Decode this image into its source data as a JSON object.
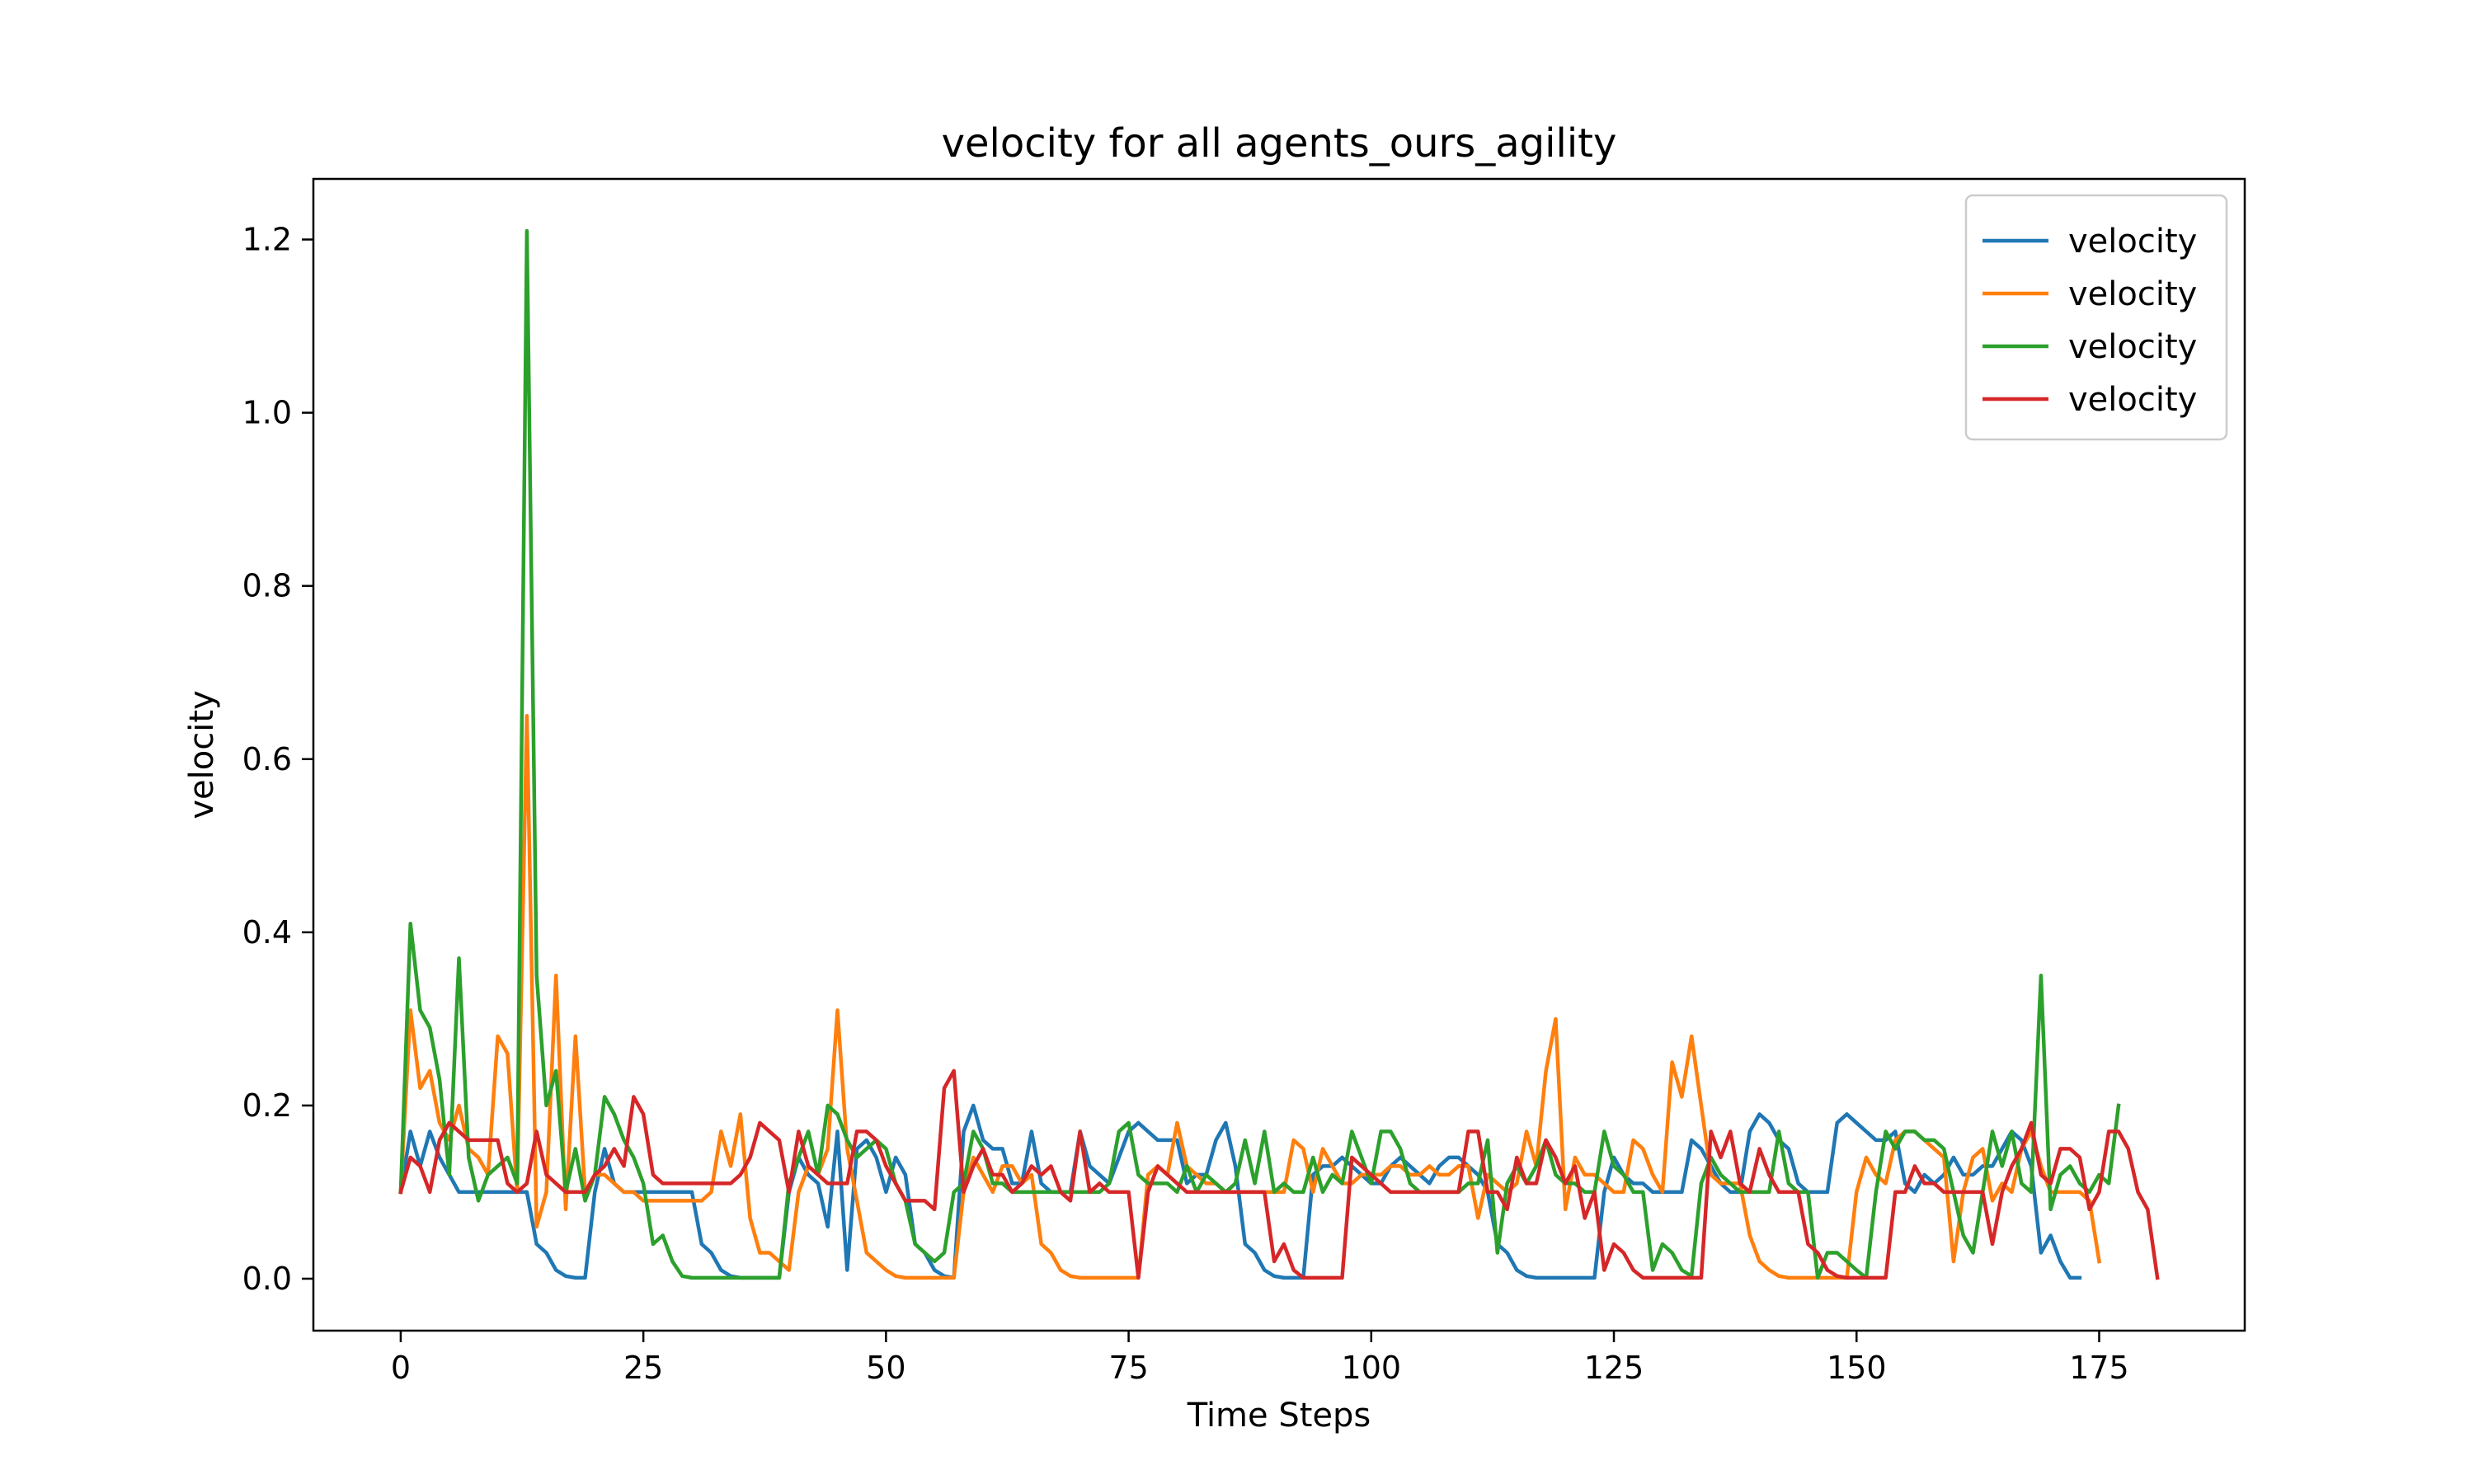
{
  "chart_data": {
    "type": "line",
    "title": "velocity for all agents_ours_agility",
    "xlabel": "Time Steps",
    "ylabel": "velocity",
    "xlim": [
      -9,
      190
    ],
    "ylim": [
      -0.06,
      1.27
    ],
    "xticks": [
      0,
      25,
      50,
      75,
      100,
      125,
      150,
      175
    ],
    "yticks": [
      0.0,
      0.2,
      0.4,
      0.6,
      0.8,
      1.0,
      1.2
    ],
    "ytick_labels": [
      "0.0",
      "0.2",
      "0.4",
      "0.6",
      "0.8",
      "1.0",
      "1.2"
    ],
    "grid": false,
    "legend_position": "top-right",
    "series": [
      {
        "name": "velocity",
        "color": "#1f77b4",
        "values": [
          0.1,
          0.17,
          0.13,
          0.17,
          0.14,
          0.12,
          0.1,
          0.1,
          0.1,
          0.1,
          0.1,
          0.1,
          0.1,
          0.1,
          0.04,
          0.03,
          0.01,
          0.003,
          0.001,
          0.001,
          0.1,
          0.15,
          0.11,
          0.1,
          0.1,
          0.1,
          0.1,
          0.1,
          0.1,
          0.1,
          0.1,
          0.04,
          0.03,
          0.01,
          0.003,
          0.001,
          0.001,
          0.001,
          0.001,
          0.001,
          0.1,
          0.14,
          0.12,
          0.11,
          0.06,
          0.17,
          0.01,
          0.15,
          0.16,
          0.14,
          0.1,
          0.14,
          0.12,
          0.04,
          0.03,
          0.01,
          0.003,
          0.001,
          0.17,
          0.2,
          0.16,
          0.15,
          0.15,
          0.11,
          0.11,
          0.17,
          0.11,
          0.1,
          0.1,
          0.1,
          0.17,
          0.13,
          0.12,
          0.11,
          0.14,
          0.17,
          0.18,
          0.17,
          0.16,
          0.16,
          0.16,
          0.11,
          0.12,
          0.12,
          0.16,
          0.18,
          0.13,
          0.04,
          0.03,
          0.01,
          0.003,
          0.001,
          0.001,
          0.001,
          0.12,
          0.13,
          0.13,
          0.14,
          0.13,
          0.12,
          0.11,
          0.11,
          0.13,
          0.14,
          0.13,
          0.12,
          0.11,
          0.13,
          0.14,
          0.14,
          0.13,
          0.12,
          0.1,
          0.04,
          0.03,
          0.01,
          0.003,
          0.001,
          0.001,
          0.001,
          0.001,
          0.001,
          0.001,
          0.001,
          0.1,
          0.14,
          0.12,
          0.11,
          0.11,
          0.1,
          0.1,
          0.1,
          0.1,
          0.16,
          0.15,
          0.13,
          0.11,
          0.1,
          0.1,
          0.17,
          0.19,
          0.18,
          0.16,
          0.15,
          0.11,
          0.1,
          0.1,
          0.1,
          0.18,
          0.19,
          0.18,
          0.17,
          0.16,
          0.16,
          0.17,
          0.11,
          0.1,
          0.12,
          0.11,
          0.12,
          0.14,
          0.12,
          0.12,
          0.13,
          0.13,
          0.15,
          0.17,
          0.16,
          0.13,
          0.03,
          0.05,
          0.02,
          0.001,
          0.001
        ]
      },
      {
        "name": "velocity",
        "color": "#ff7f0e",
        "values": [
          0.1,
          0.31,
          0.22,
          0.24,
          0.18,
          0.16,
          0.2,
          0.15,
          0.14,
          0.12,
          0.28,
          0.26,
          0.1,
          0.65,
          0.06,
          0.1,
          0.35,
          0.08,
          0.28,
          0.1,
          0.12,
          0.12,
          0.11,
          0.1,
          0.1,
          0.09,
          0.09,
          0.09,
          0.09,
          0.09,
          0.09,
          0.09,
          0.1,
          0.17,
          0.13,
          0.19,
          0.07,
          0.03,
          0.03,
          0.02,
          0.01,
          0.1,
          0.13,
          0.12,
          0.15,
          0.31,
          0.15,
          0.09,
          0.03,
          0.02,
          0.01,
          0.003,
          0.001,
          0.001,
          0.001,
          0.001,
          0.001,
          0.001,
          0.1,
          0.14,
          0.12,
          0.1,
          0.13,
          0.13,
          0.11,
          0.12,
          0.04,
          0.03,
          0.01,
          0.003,
          0.001,
          0.001,
          0.001,
          0.001,
          0.001,
          0.001,
          0.001,
          0.12,
          0.13,
          0.12,
          0.18,
          0.13,
          0.12,
          0.11,
          0.11,
          0.1,
          0.1,
          0.1,
          0.1,
          0.1,
          0.1,
          0.1,
          0.16,
          0.15,
          0.1,
          0.15,
          0.13,
          0.11,
          0.11,
          0.12,
          0.12,
          0.12,
          0.13,
          0.13,
          0.12,
          0.12,
          0.13,
          0.12,
          0.12,
          0.13,
          0.13,
          0.07,
          0.12,
          0.11,
          0.1,
          0.11,
          0.17,
          0.13,
          0.24,
          0.3,
          0.08,
          0.14,
          0.12,
          0.12,
          0.11,
          0.1,
          0.1,
          0.16,
          0.15,
          0.12,
          0.1,
          0.25,
          0.21,
          0.28,
          0.2,
          0.12,
          0.11,
          0.11,
          0.11,
          0.05,
          0.02,
          0.01,
          0.003,
          0.001,
          0.001,
          0.001,
          0.001,
          0.001,
          0.001,
          0.001,
          0.1,
          0.14,
          0.12,
          0.11,
          0.16,
          0.17,
          0.17,
          0.16,
          0.15,
          0.14,
          0.02,
          0.1,
          0.14,
          0.15,
          0.09,
          0.11,
          0.1,
          0.15,
          0.17,
          0.13,
          0.1,
          0.1,
          0.1,
          0.1,
          0.09,
          0.02
        ]
      },
      {
        "name": "velocity",
        "color": "#2ca02c",
        "values": [
          0.1,
          0.41,
          0.31,
          0.29,
          0.23,
          0.12,
          0.37,
          0.14,
          0.09,
          0.12,
          0.13,
          0.14,
          0.11,
          1.21,
          0.35,
          0.2,
          0.24,
          0.1,
          0.15,
          0.09,
          0.12,
          0.21,
          0.19,
          0.16,
          0.14,
          0.11,
          0.04,
          0.05,
          0.02,
          0.003,
          0.001,
          0.001,
          0.001,
          0.001,
          0.001,
          0.001,
          0.001,
          0.001,
          0.001,
          0.001,
          0.11,
          0.14,
          0.17,
          0.12,
          0.2,
          0.19,
          0.16,
          0.14,
          0.15,
          0.16,
          0.15,
          0.11,
          0.09,
          0.04,
          0.03,
          0.02,
          0.03,
          0.1,
          0.11,
          0.17,
          0.15,
          0.11,
          0.11,
          0.1,
          0.1,
          0.1,
          0.1,
          0.1,
          0.1,
          0.1,
          0.1,
          0.1,
          0.1,
          0.11,
          0.17,
          0.18,
          0.12,
          0.11,
          0.11,
          0.11,
          0.1,
          0.13,
          0.1,
          0.12,
          0.11,
          0.1,
          0.11,
          0.16,
          0.11,
          0.17,
          0.1,
          0.11,
          0.1,
          0.1,
          0.14,
          0.1,
          0.12,
          0.11,
          0.17,
          0.14,
          0.11,
          0.17,
          0.17,
          0.15,
          0.11,
          0.1,
          0.1,
          0.1,
          0.1,
          0.1,
          0.11,
          0.11,
          0.16,
          0.03,
          0.11,
          0.13,
          0.11,
          0.13,
          0.16,
          0.12,
          0.11,
          0.11,
          0.1,
          0.1,
          0.17,
          0.13,
          0.12,
          0.1,
          0.1,
          0.01,
          0.04,
          0.03,
          0.01,
          0.003,
          0.11,
          0.14,
          0.12,
          0.11,
          0.1,
          0.1,
          0.1,
          0.1,
          0.17,
          0.11,
          0.1,
          0.1,
          0.001,
          0.03,
          0.03,
          0.02,
          0.01,
          0.001,
          0.1,
          0.17,
          0.15,
          0.17,
          0.17,
          0.16,
          0.16,
          0.15,
          0.1,
          0.05,
          0.03,
          0.1,
          0.17,
          0.13,
          0.17,
          0.11,
          0.1,
          0.35,
          0.08,
          0.12,
          0.13,
          0.11,
          0.1,
          0.12,
          0.11,
          0.2
        ]
      },
      {
        "name": "velocity",
        "color": "#d62728",
        "values": [
          0.1,
          0.14,
          0.13,
          0.1,
          0.16,
          0.18,
          0.17,
          0.16,
          0.16,
          0.16,
          0.16,
          0.11,
          0.1,
          0.11,
          0.17,
          0.12,
          0.11,
          0.1,
          0.1,
          0.1,
          0.12,
          0.13,
          0.15,
          0.13,
          0.21,
          0.19,
          0.12,
          0.11,
          0.11,
          0.11,
          0.11,
          0.11,
          0.11,
          0.11,
          0.11,
          0.12,
          0.14,
          0.18,
          0.17,
          0.16,
          0.1,
          0.17,
          0.13,
          0.12,
          0.11,
          0.11,
          0.11,
          0.17,
          0.17,
          0.16,
          0.13,
          0.11,
          0.09,
          0.09,
          0.09,
          0.08,
          0.22,
          0.24,
          0.1,
          0.13,
          0.15,
          0.12,
          0.12,
          0.1,
          0.11,
          0.13,
          0.12,
          0.13,
          0.1,
          0.09,
          0.17,
          0.1,
          0.11,
          0.1,
          0.1,
          0.1,
          0.001,
          0.1,
          0.13,
          0.12,
          0.11,
          0.1,
          0.1,
          0.1,
          0.1,
          0.1,
          0.1,
          0.1,
          0.1,
          0.1,
          0.02,
          0.04,
          0.01,
          0.001,
          0.001,
          0.001,
          0.001,
          0.001,
          0.14,
          0.13,
          0.12,
          0.11,
          0.1,
          0.1,
          0.1,
          0.1,
          0.1,
          0.1,
          0.1,
          0.1,
          0.17,
          0.17,
          0.1,
          0.1,
          0.08,
          0.14,
          0.11,
          0.11,
          0.16,
          0.14,
          0.11,
          0.13,
          0.07,
          0.1,
          0.01,
          0.04,
          0.03,
          0.01,
          0.001,
          0.001,
          0.001,
          0.001,
          0.001,
          0.001,
          0.001,
          0.17,
          0.14,
          0.17,
          0.11,
          0.1,
          0.15,
          0.12,
          0.1,
          0.1,
          0.1,
          0.04,
          0.03,
          0.01,
          0.003,
          0.001,
          0.001,
          0.001,
          0.001,
          0.001,
          0.1,
          0.1,
          0.13,
          0.11,
          0.11,
          0.1,
          0.1,
          0.1,
          0.1,
          0.1,
          0.04,
          0.1,
          0.13,
          0.15,
          0.18,
          0.12,
          0.11,
          0.15,
          0.15,
          0.14,
          0.08,
          0.1,
          0.17,
          0.17,
          0.15,
          0.1,
          0.08,
          0.001
        ]
      }
    ]
  }
}
